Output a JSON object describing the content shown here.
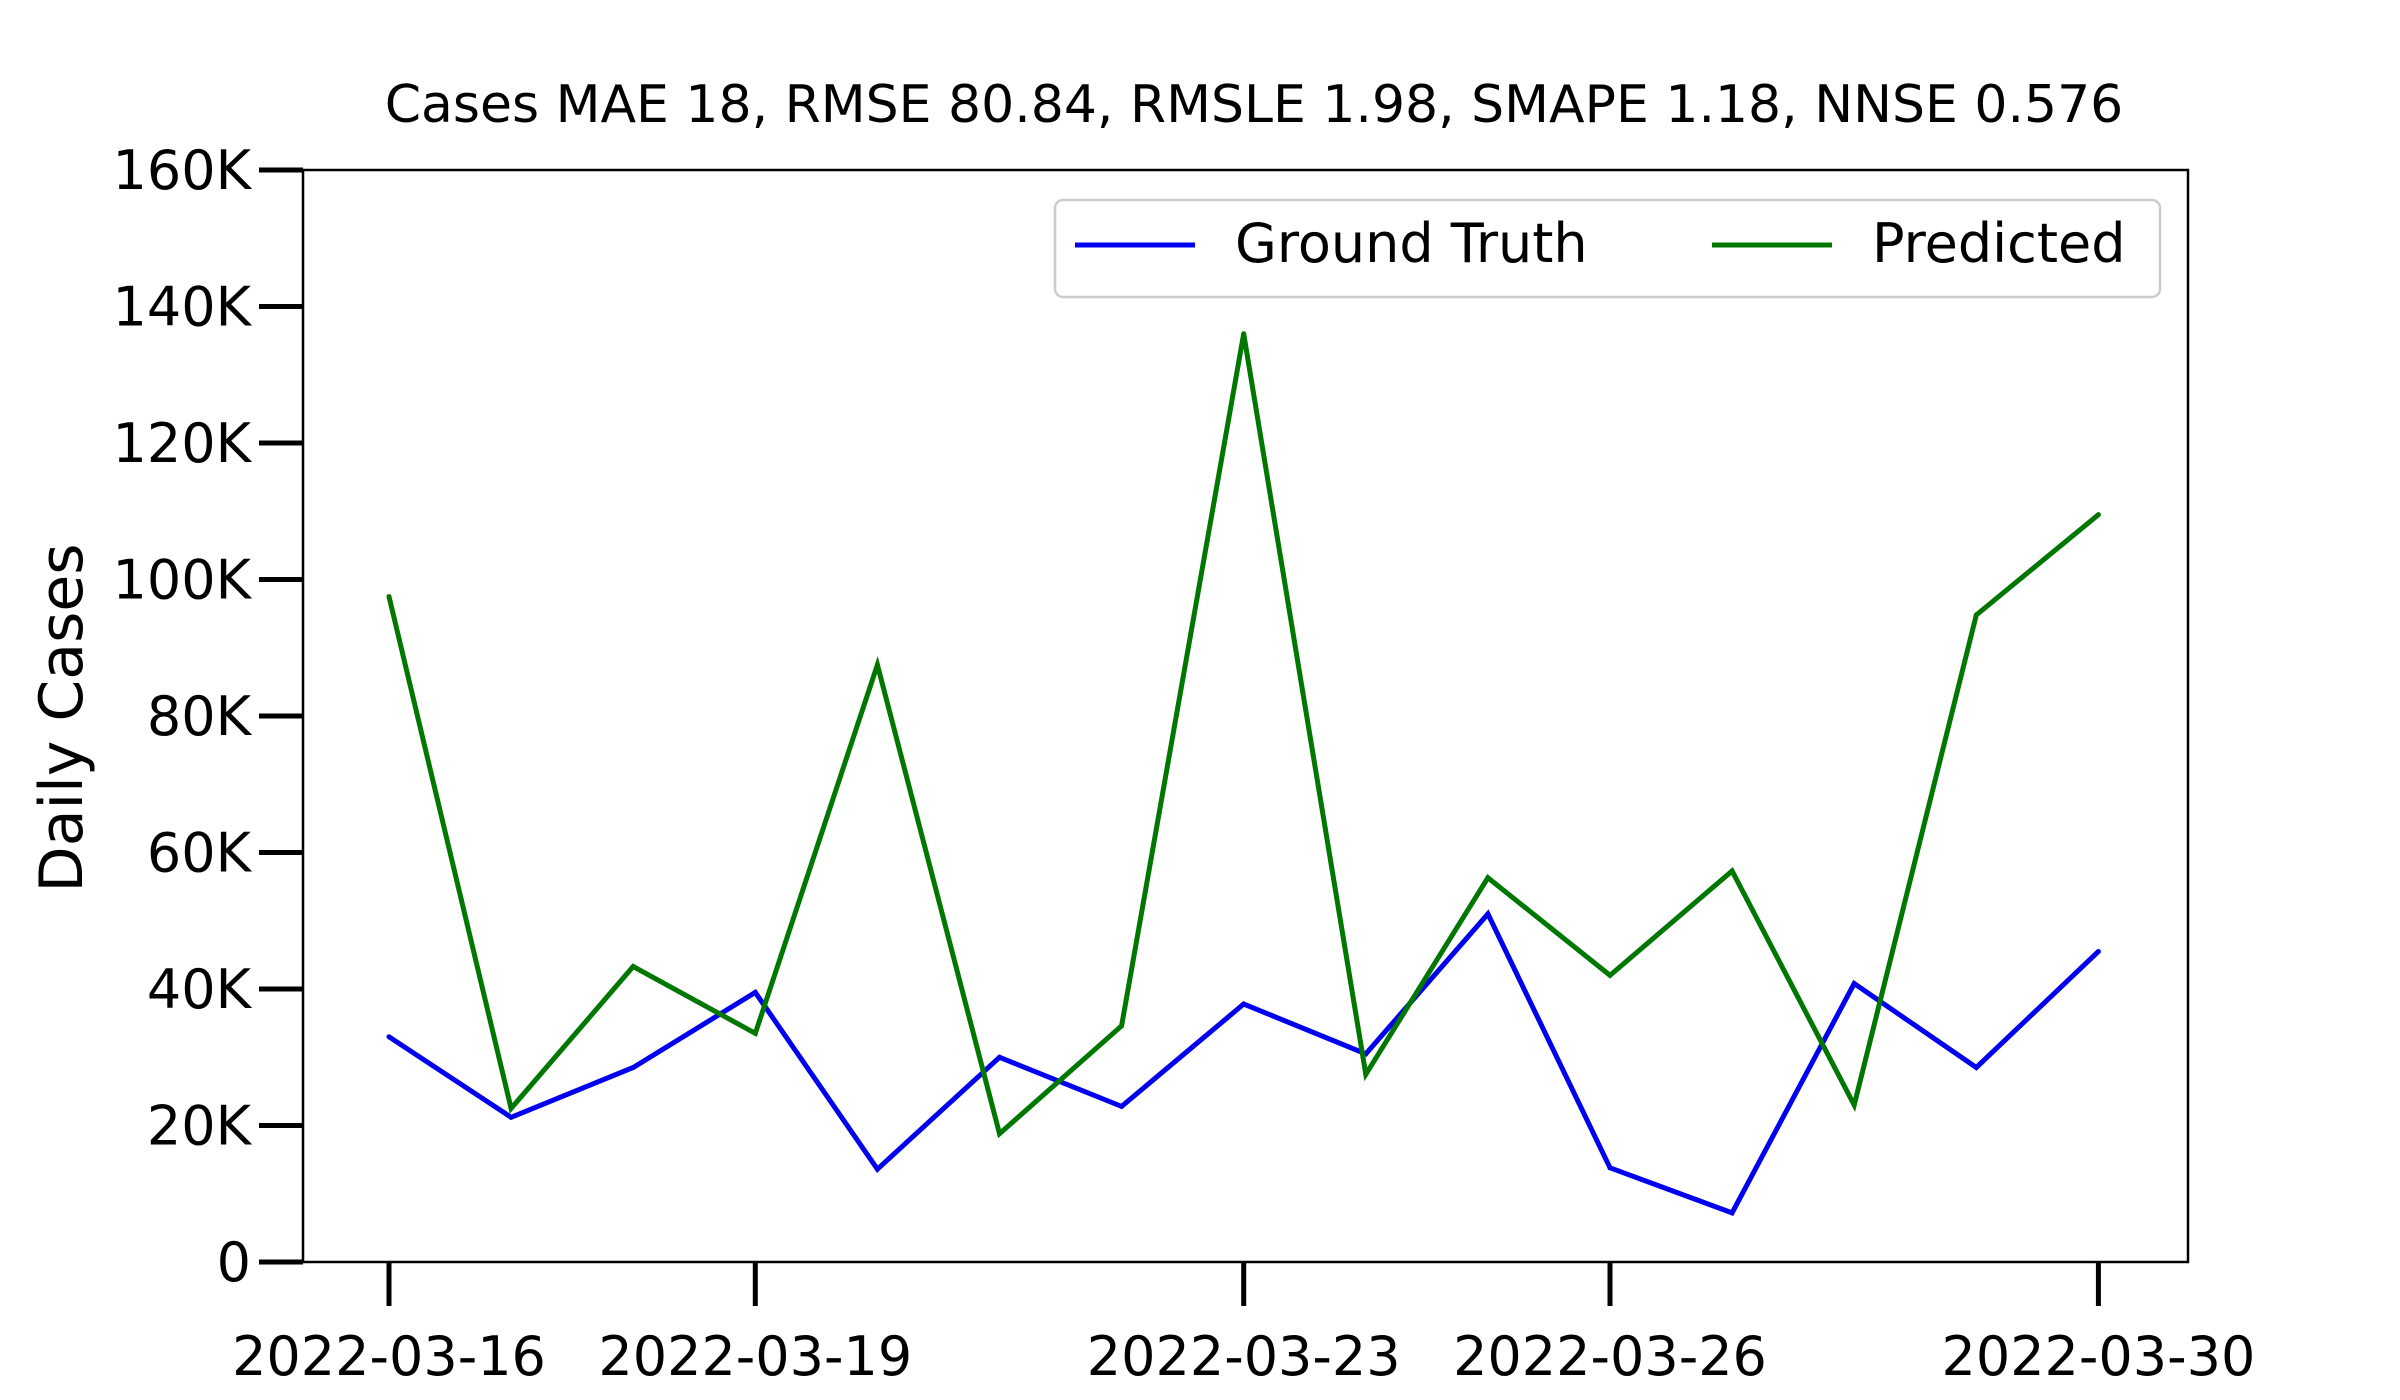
{
  "chart_data": {
    "type": "line",
    "title": "Cases MAE 18, RMSE 80.84, RMSLE 1.98, SMAPE 1.18, NNSE 0.576",
    "xlabel": "",
    "ylabel": "Daily Cases",
    "x": [
      "2022-03-16",
      "2022-03-17",
      "2022-03-18",
      "2022-03-19",
      "2022-03-20",
      "2022-03-21",
      "2022-03-22",
      "2022-03-23",
      "2022-03-24",
      "2022-03-25",
      "2022-03-26",
      "2022-03-27",
      "2022-03-28",
      "2022-03-29",
      "2022-03-30"
    ],
    "xticks": [
      "2022-03-16",
      "2022-03-19",
      "2022-03-23",
      "2022-03-26",
      "2022-03-30"
    ],
    "ylim": [
      0,
      160000
    ],
    "yticks": [
      0,
      20000,
      40000,
      60000,
      80000,
      100000,
      120000,
      140000,
      160000
    ],
    "ytick_labels": [
      "0",
      "20K",
      "40K",
      "60K",
      "80K",
      "100K",
      "120K",
      "140K",
      "160K"
    ],
    "grid": false,
    "legend": {
      "position": "top-right",
      "columns": 2
    },
    "series": [
      {
        "name": "Ground Truth",
        "color": "#0000ee",
        "values": [
          33000,
          21200,
          28500,
          39500,
          13600,
          30000,
          22800,
          37800,
          30500,
          51000,
          13800,
          7200,
          40800,
          28500,
          45500
        ]
      },
      {
        "name": "Predicted",
        "color": "#007700",
        "values": [
          97500,
          22500,
          43300,
          33500,
          87500,
          18800,
          34600,
          136000,
          27500,
          56300,
          42000,
          57300,
          23000,
          94800,
          109500
        ]
      }
    ]
  }
}
